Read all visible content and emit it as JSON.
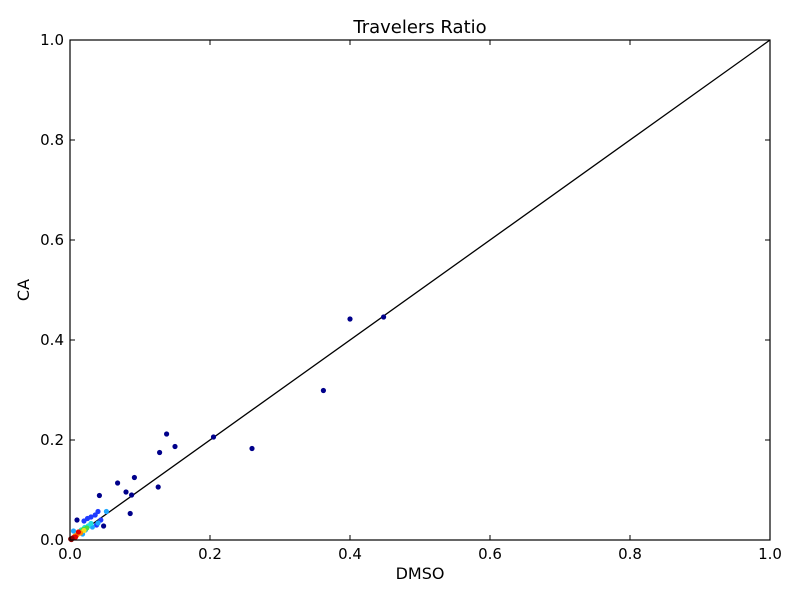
{
  "chart_data": {
    "type": "scatter",
    "title": "Travelers Ratio",
    "xlabel": "DMSO",
    "ylabel": "CA",
    "xlim": [
      0,
      1
    ],
    "ylim": [
      0,
      1
    ],
    "xticks": [
      "0.0",
      "0.2",
      "0.4",
      "0.6",
      "0.8",
      "1.0"
    ],
    "yticks": [
      "0.0",
      "0.2",
      "0.4",
      "0.6",
      "0.8",
      "1.0"
    ],
    "grid": false,
    "reference_line": {
      "from": [
        0,
        0
      ],
      "to": [
        1,
        1
      ],
      "color": "#000000"
    },
    "colors": {
      "dark_blue": "#00008b",
      "blue": "#1f3bff",
      "light_blue": "#1ea7ff",
      "cyan": "#20e0e0",
      "green": "#44dd44",
      "yellow": "#f0e020",
      "orange": "#ff8a00",
      "red": "#e00000",
      "dark_red": "#8b0000"
    },
    "points": [
      {
        "x": 0.448,
        "y": 0.446,
        "c": "dark_blue"
      },
      {
        "x": 0.4,
        "y": 0.442,
        "c": "dark_blue"
      },
      {
        "x": 0.362,
        "y": 0.299,
        "c": "dark_blue"
      },
      {
        "x": 0.26,
        "y": 0.183,
        "c": "dark_blue"
      },
      {
        "x": 0.205,
        "y": 0.206,
        "c": "dark_blue"
      },
      {
        "x": 0.138,
        "y": 0.212,
        "c": "dark_blue"
      },
      {
        "x": 0.15,
        "y": 0.187,
        "c": "dark_blue"
      },
      {
        "x": 0.128,
        "y": 0.175,
        "c": "dark_blue"
      },
      {
        "x": 0.126,
        "y": 0.106,
        "c": "dark_blue"
      },
      {
        "x": 0.092,
        "y": 0.125,
        "c": "dark_blue"
      },
      {
        "x": 0.068,
        "y": 0.114,
        "c": "dark_blue"
      },
      {
        "x": 0.08,
        "y": 0.096,
        "c": "dark_blue"
      },
      {
        "x": 0.088,
        "y": 0.09,
        "c": "dark_blue"
      },
      {
        "x": 0.042,
        "y": 0.089,
        "c": "dark_blue"
      },
      {
        "x": 0.086,
        "y": 0.053,
        "c": "dark_blue"
      },
      {
        "x": 0.048,
        "y": 0.028,
        "c": "dark_blue"
      },
      {
        "x": 0.01,
        "y": 0.04,
        "c": "dark_blue"
      },
      {
        "x": 0.04,
        "y": 0.057,
        "c": "blue"
      },
      {
        "x": 0.036,
        "y": 0.05,
        "c": "blue"
      },
      {
        "x": 0.03,
        "y": 0.046,
        "c": "blue"
      },
      {
        "x": 0.025,
        "y": 0.043,
        "c": "blue"
      },
      {
        "x": 0.02,
        "y": 0.038,
        "c": "blue"
      },
      {
        "x": 0.044,
        "y": 0.04,
        "c": "blue"
      },
      {
        "x": 0.038,
        "y": 0.03,
        "c": "blue"
      },
      {
        "x": 0.052,
        "y": 0.057,
        "c": "light_blue"
      },
      {
        "x": 0.04,
        "y": 0.034,
        "c": "light_blue"
      },
      {
        "x": 0.032,
        "y": 0.026,
        "c": "light_blue"
      },
      {
        "x": 0.022,
        "y": 0.02,
        "c": "light_blue"
      },
      {
        "x": 0.018,
        "y": 0.012,
        "c": "light_blue"
      },
      {
        "x": 0.005,
        "y": 0.018,
        "c": "light_blue"
      },
      {
        "x": 0.03,
        "y": 0.033,
        "c": "cyan"
      },
      {
        "x": 0.026,
        "y": 0.028,
        "c": "cyan"
      },
      {
        "x": 0.021,
        "y": 0.025,
        "c": "cyan"
      },
      {
        "x": 0.016,
        "y": 0.02,
        "c": "cyan"
      },
      {
        "x": 0.024,
        "y": 0.024,
        "c": "green"
      },
      {
        "x": 0.019,
        "y": 0.021,
        "c": "green"
      },
      {
        "x": 0.015,
        "y": 0.017,
        "c": "green"
      },
      {
        "x": 0.02,
        "y": 0.019,
        "c": "yellow"
      },
      {
        "x": 0.014,
        "y": 0.015,
        "c": "yellow"
      },
      {
        "x": 0.011,
        "y": 0.012,
        "c": "yellow"
      },
      {
        "x": 0.015,
        "y": 0.014,
        "c": "orange"
      },
      {
        "x": 0.01,
        "y": 0.01,
        "c": "orange"
      },
      {
        "x": 0.007,
        "y": 0.008,
        "c": "orange"
      },
      {
        "x": 0.012,
        "y": 0.016,
        "c": "red"
      },
      {
        "x": 0.008,
        "y": 0.006,
        "c": "red"
      },
      {
        "x": 0.005,
        "y": 0.005,
        "c": "red"
      },
      {
        "x": 0.003,
        "y": 0.003,
        "c": "dark_red"
      },
      {
        "x": 0.002,
        "y": 0.001,
        "c": "dark_red"
      },
      {
        "x": 0.001,
        "y": 0.002,
        "c": "dark_red"
      }
    ]
  }
}
